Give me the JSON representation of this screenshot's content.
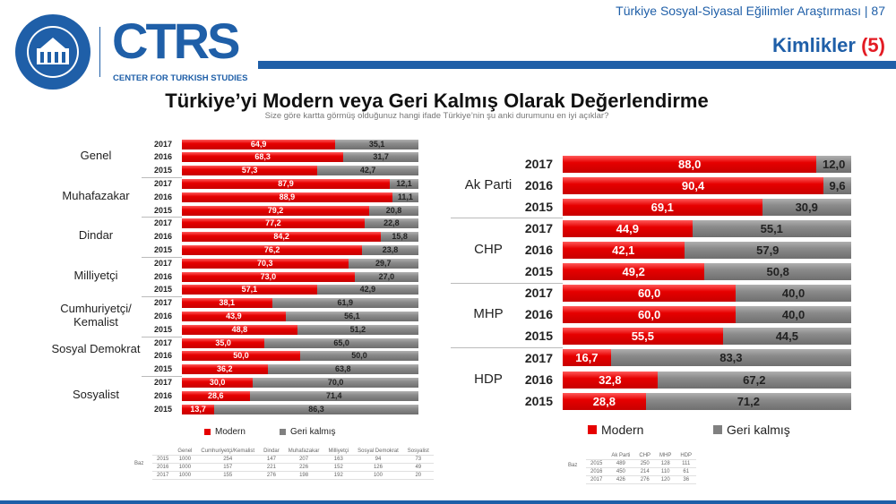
{
  "header": {
    "survey_title": "Türkiye Sosyal-Siyasal Eğilimler Araştırması | 87",
    "section_title": "Kimlikler",
    "section_number": "(5)",
    "logo_khas": "KADİR HAS ÜNİVERSİTESİ 1997",
    "logo_ctrs": "CTRS",
    "logo_ctrs_sub": "CENTER FOR TURKISH STUDIES"
  },
  "title": "Türkiye’yi Modern veya Geri Kalmış Olarak Değerlendirme",
  "subtitle": "Size göre kartta görmüş olduğunuz hangi ifade Türkiye’nin şu anki durumunu en iyi açıklar?",
  "colors": {
    "modern": "#e60000",
    "geri_kalmis": "#808080",
    "accent": "#1f5fa8"
  },
  "chart_data": [
    {
      "type": "bar",
      "orientation": "horizontal",
      "stacked": true,
      "xlim": [
        0,
        100
      ],
      "legend": [
        "Modern",
        "Geri kalmış"
      ],
      "legend_position": "bottom",
      "groups": [
        {
          "label": "Genel",
          "rows": [
            {
              "year": "2017",
              "modern": 64.9,
              "geri": 35.1
            },
            {
              "year": "2016",
              "modern": 68.3,
              "geri": 31.7
            },
            {
              "year": "2015",
              "modern": 57.3,
              "geri": 42.7
            }
          ]
        },
        {
          "label": "Muhafazakar",
          "rows": [
            {
              "year": "2017",
              "modern": 87.9,
              "geri": 12.1
            },
            {
              "year": "2016",
              "modern": 88.9,
              "geri": 11.1
            },
            {
              "year": "2015",
              "modern": 79.2,
              "geri": 20.8
            }
          ]
        },
        {
          "label": "Dindar",
          "rows": [
            {
              "year": "2017",
              "modern": 77.2,
              "geri": 22.8
            },
            {
              "year": "2016",
              "modern": 84.2,
              "geri": 15.8
            },
            {
              "year": "2015",
              "modern": 76.2,
              "geri": 23.8
            }
          ]
        },
        {
          "label": "Milliyetçi",
          "rows": [
            {
              "year": "2017",
              "modern": 70.3,
              "geri": 29.7
            },
            {
              "year": "2016",
              "modern": 73.0,
              "geri": 27.0
            },
            {
              "year": "2015",
              "modern": 57.1,
              "geri": 42.9
            }
          ]
        },
        {
          "label": "Cumhuriyetçi/ Kemalist",
          "rows": [
            {
              "year": "2017",
              "modern": 38.1,
              "geri": 61.9
            },
            {
              "year": "2016",
              "modern": 43.9,
              "geri": 56.1
            },
            {
              "year": "2015",
              "modern": 48.8,
              "geri": 51.2
            }
          ]
        },
        {
          "label": "Sosyal Demokrat",
          "rows": [
            {
              "year": "2017",
              "modern": 35.0,
              "geri": 65.0
            },
            {
              "year": "2016",
              "modern": 50.0,
              "geri": 50.0
            },
            {
              "year": "2015",
              "modern": 36.2,
              "geri": 63.8
            }
          ]
        },
        {
          "label": "Sosyalist",
          "rows": [
            {
              "year": "2017",
              "modern": 30.0,
              "geri": 70.0
            },
            {
              "year": "2016",
              "modern": 28.6,
              "geri": 71.4
            },
            {
              "year": "2015",
              "modern": 13.7,
              "geri": 86.3
            }
          ]
        }
      ]
    },
    {
      "type": "bar",
      "orientation": "horizontal",
      "stacked": true,
      "xlim": [
        0,
        100
      ],
      "legend": [
        "Modern",
        "Geri kalmış"
      ],
      "legend_position": "bottom",
      "groups": [
        {
          "label": "Ak Parti",
          "rows": [
            {
              "year": "2017",
              "modern": 88.0,
              "geri": 12.0
            },
            {
              "year": "2016",
              "modern": 90.4,
              "geri": 9.6
            },
            {
              "year": "2015",
              "modern": 69.1,
              "geri": 30.9
            }
          ]
        },
        {
          "label": "CHP",
          "rows": [
            {
              "year": "2017",
              "modern": 44.9,
              "geri": 55.1
            },
            {
              "year": "2016",
              "modern": 42.1,
              "geri": 57.9
            },
            {
              "year": "2015",
              "modern": 49.2,
              "geri": 50.8
            }
          ]
        },
        {
          "label": "MHP",
          "rows": [
            {
              "year": "2017",
              "modern": 60.0,
              "geri": 40.0
            },
            {
              "year": "2016",
              "modern": 60.0,
              "geri": 40.0
            },
            {
              "year": "2015",
              "modern": 55.5,
              "geri": 44.5
            }
          ]
        },
        {
          "label": "HDP",
          "rows": [
            {
              "year": "2017",
              "modern": 16.7,
              "geri": 83.3
            },
            {
              "year": "2016",
              "modern": 32.8,
              "geri": 67.2
            },
            {
              "year": "2015",
              "modern": 28.8,
              "geri": 71.2
            }
          ]
        }
      ]
    }
  ],
  "base_table_left": {
    "label": "Baz",
    "headers": [
      "",
      "Genel",
      "Cumhuriyetçi/Kemalist",
      "Dindar",
      "Muhafazakar",
      "Milliyetçi",
      "Sosyal Demokrat",
      "Sosyalist"
    ],
    "rows": [
      [
        "2015",
        "1000",
        "254",
        "147",
        "207",
        "163",
        "94",
        "73"
      ],
      [
        "2016",
        "1000",
        "157",
        "221",
        "226",
        "152",
        "126",
        "49"
      ],
      [
        "2017",
        "1000",
        "155",
        "276",
        "198",
        "192",
        "100",
        "20"
      ]
    ]
  },
  "base_table_right": {
    "label": "Baz",
    "headers": [
      "",
      "Ak Parti",
      "CHP",
      "MHP",
      "HDP"
    ],
    "rows": [
      [
        "2015",
        "489",
        "250",
        "128",
        "111"
      ],
      [
        "2016",
        "450",
        "214",
        "110",
        "61"
      ],
      [
        "2017",
        "426",
        "276",
        "120",
        "36"
      ]
    ]
  }
}
